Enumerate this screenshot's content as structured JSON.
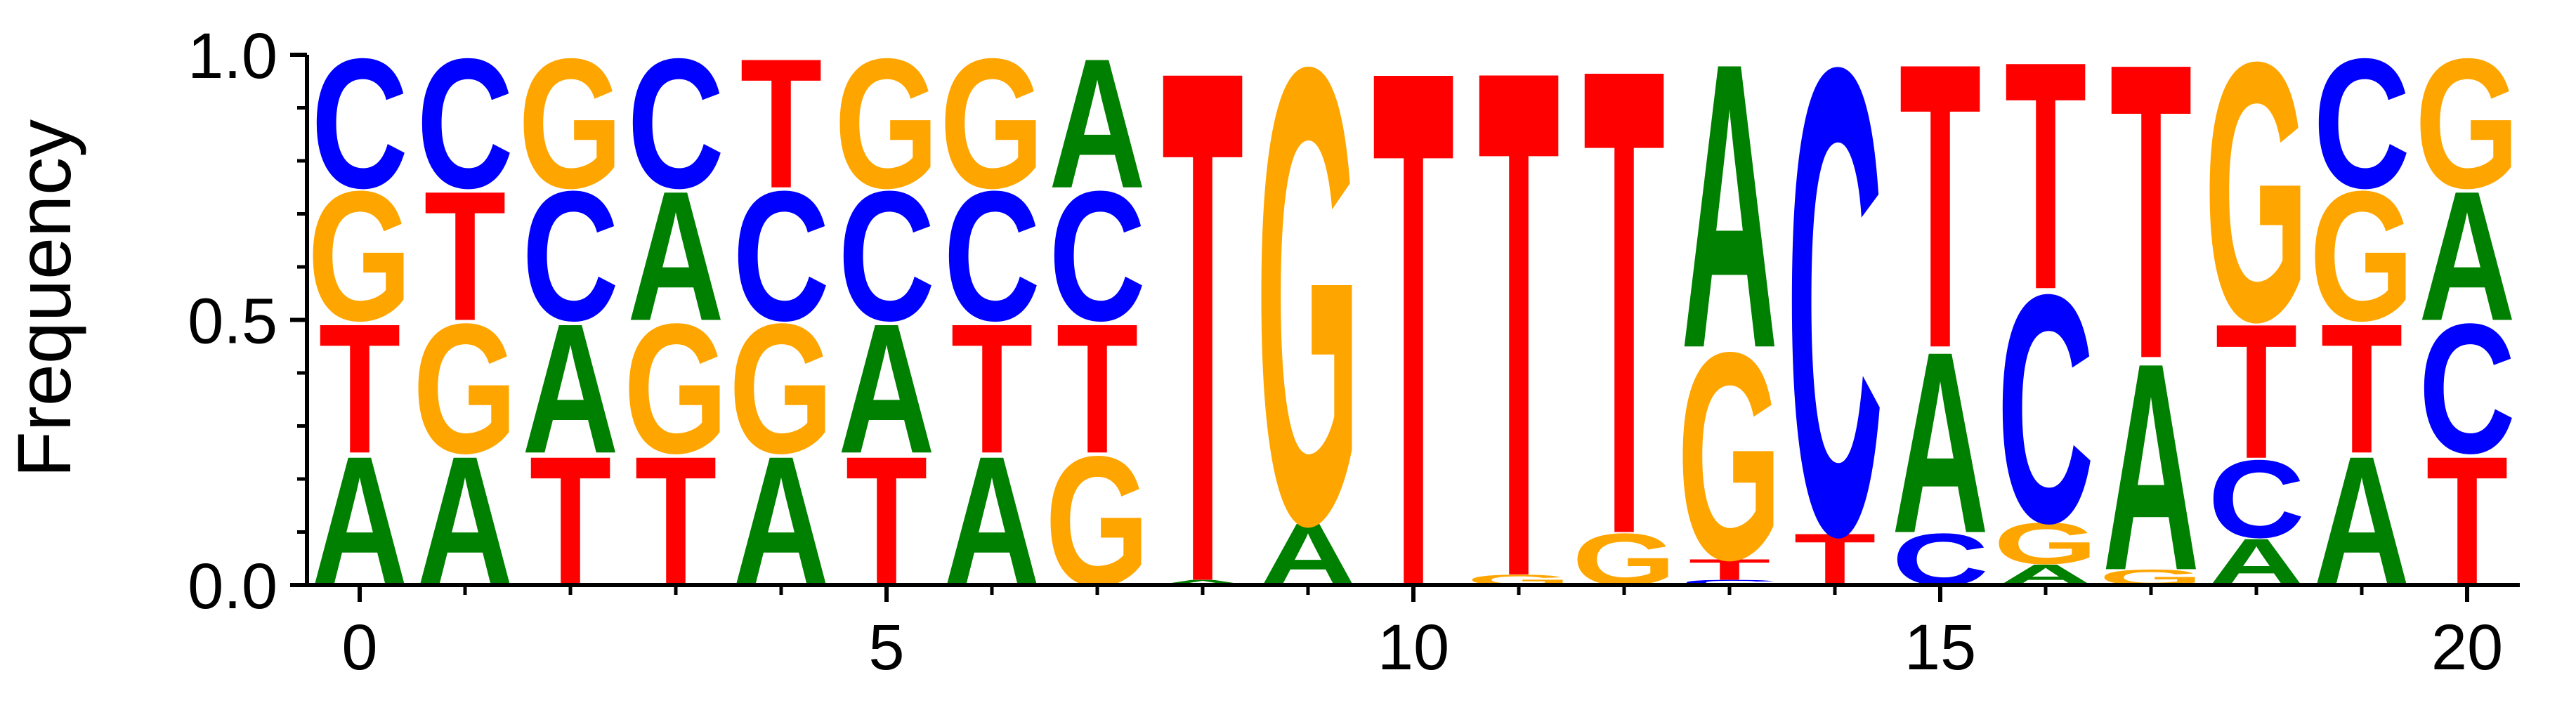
{
  "chart_data": {
    "type": "sequence_logo",
    "ylabel": "Frequency",
    "xlim": [
      -0.5,
      20.5
    ],
    "ylim": [
      0,
      1
    ],
    "x_ticks": [
      0,
      5,
      10,
      15,
      20
    ],
    "x_minor_ticks": [
      1,
      2,
      3,
      4,
      6,
      7,
      8,
      9,
      11,
      12,
      13,
      14,
      16,
      17,
      18,
      19
    ],
    "y_ticks": [
      0.0,
      0.5,
      1.0
    ],
    "y_tick_labels": [
      "0.0",
      "0.5",
      "1.0"
    ],
    "y_minor_ticks": [
      0.1,
      0.2,
      0.3,
      0.4,
      0.6,
      0.7,
      0.8,
      0.9
    ],
    "colors": {
      "A": "#008000",
      "C": "#0000ff",
      "G": "#ffa500",
      "T": "#ff0000"
    },
    "positions": [
      [
        [
          "A",
          0.25
        ],
        [
          "T",
          0.25
        ],
        [
          "G",
          0.25
        ],
        [
          "C",
          0.25
        ]
      ],
      [
        [
          "A",
          0.25
        ],
        [
          "G",
          0.25
        ],
        [
          "T",
          0.25
        ],
        [
          "C",
          0.25
        ]
      ],
      [
        [
          "T",
          0.25
        ],
        [
          "A",
          0.25
        ],
        [
          "C",
          0.25
        ],
        [
          "G",
          0.25
        ]
      ],
      [
        [
          "T",
          0.25
        ],
        [
          "G",
          0.25
        ],
        [
          "A",
          0.25
        ],
        [
          "C",
          0.25
        ]
      ],
      [
        [
          "A",
          0.25
        ],
        [
          "G",
          0.25
        ],
        [
          "C",
          0.25
        ],
        [
          "T",
          0.25
        ]
      ],
      [
        [
          "T",
          0.25
        ],
        [
          "A",
          0.25
        ],
        [
          "C",
          0.25
        ],
        [
          "G",
          0.25
        ]
      ],
      [
        [
          "A",
          0.25
        ],
        [
          "T",
          0.25
        ],
        [
          "C",
          0.25
        ],
        [
          "G",
          0.25
        ]
      ],
      [
        [
          "G",
          0.25
        ],
        [
          "T",
          0.25
        ],
        [
          "C",
          0.25
        ],
        [
          "A",
          0.25
        ]
      ],
      [
        [
          "A",
          0.01
        ],
        [
          "T",
          0.99
        ]
      ],
      [
        [
          "A",
          0.12
        ],
        [
          "G",
          0.88
        ]
      ],
      [
        [
          "T",
          1.0
        ]
      ],
      [
        [
          "G",
          0.02
        ],
        [
          "T",
          0.98
        ]
      ],
      [
        [
          "G",
          0.1
        ],
        [
          "T",
          0.9
        ]
      ],
      [
        [
          "C",
          0.01
        ],
        [
          "T",
          0.04
        ],
        [
          "G",
          0.4
        ],
        [
          "A",
          0.55
        ]
      ],
      [
        [
          "T",
          0.1
        ],
        [
          "C",
          0.9
        ]
      ],
      [
        [
          "C",
          0.1
        ],
        [
          "A",
          0.35
        ],
        [
          "T",
          0.55
        ]
      ],
      [
        [
          "A",
          0.04
        ],
        [
          "G",
          0.08
        ],
        [
          "C",
          0.44
        ],
        [
          "T",
          0.44
        ]
      ],
      [
        [
          "G",
          0.03
        ],
        [
          "A",
          0.4
        ],
        [
          "T",
          0.57
        ]
      ],
      [
        [
          "A",
          0.09
        ],
        [
          "C",
          0.15
        ],
        [
          "T",
          0.26
        ],
        [
          "G",
          0.5
        ]
      ],
      [
        [
          "A",
          0.25
        ],
        [
          "T",
          0.25
        ],
        [
          "G",
          0.25
        ],
        [
          "C",
          0.25
        ]
      ],
      [
        [
          "T",
          0.25
        ],
        [
          "C",
          0.25
        ],
        [
          "A",
          0.25
        ],
        [
          "G",
          0.25
        ]
      ]
    ]
  }
}
